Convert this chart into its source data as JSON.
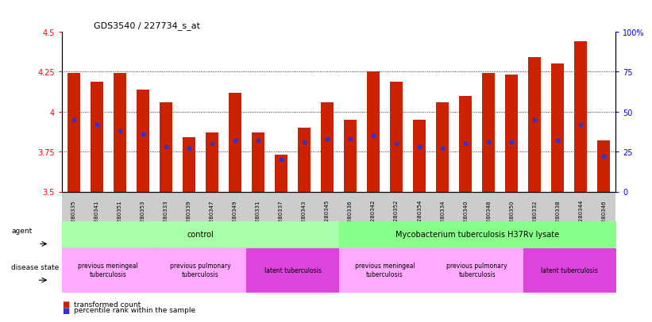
{
  "title": "GDS3540 / 227734_s_at",
  "samples": [
    "GSM280335",
    "GSM280341",
    "GSM280351",
    "GSM280353",
    "GSM280333",
    "GSM280339",
    "GSM280347",
    "GSM280349",
    "GSM280331",
    "GSM280337",
    "GSM280343",
    "GSM280345",
    "GSM280336",
    "GSM280342",
    "GSM280352",
    "GSM280354",
    "GSM280334",
    "GSM280340",
    "GSM280348",
    "GSM280350",
    "GSM280332",
    "GSM280338",
    "GSM280344",
    "GSM280346"
  ],
  "transformed_count": [
    4.24,
    4.19,
    4.24,
    4.14,
    4.06,
    3.84,
    3.87,
    4.12,
    3.87,
    3.73,
    3.9,
    4.06,
    3.95,
    4.25,
    4.19,
    3.95,
    4.06,
    4.1,
    4.24,
    4.23,
    4.34,
    4.3,
    4.44,
    3.82
  ],
  "percentile_pct": [
    45,
    42,
    38,
    36,
    28,
    27,
    30,
    32,
    32,
    20,
    31,
    33,
    33,
    35,
    30,
    28,
    27,
    30,
    31,
    31,
    45,
    32,
    42,
    22
  ],
  "ylim_left": [
    3.5,
    4.5
  ],
  "ylim_right": [
    0,
    100
  ],
  "yticks_left": [
    3.5,
    3.75,
    4.0,
    4.25,
    4.5
  ],
  "yticks_right": [
    0,
    25,
    50,
    75,
    100
  ],
  "ytick_labels_left": [
    "3.5",
    "3.75",
    "4",
    "4.25",
    "4.5"
  ],
  "ytick_labels_right": [
    "0",
    "25",
    "50",
    "75",
    "100%"
  ],
  "bar_color": "#cc2200",
  "dot_color": "#3333cc",
  "agent_groups": [
    {
      "label": "control",
      "start": 0,
      "end": 11,
      "color": "#aaffaa"
    },
    {
      "label": "Mycobacterium tuberculosis H37Rv lysate",
      "start": 12,
      "end": 23,
      "color": "#88ff88"
    }
  ],
  "disease_groups": [
    {
      "label": "previous meningeal\ntuberculosis",
      "start": 0,
      "end": 3,
      "color": "#ffaaff"
    },
    {
      "label": "previous pulmonary\ntuberculosis",
      "start": 4,
      "end": 7,
      "color": "#ffaaff"
    },
    {
      "label": "latent tuberculosis",
      "start": 8,
      "end": 11,
      "color": "#dd44dd"
    },
    {
      "label": "previous meningeal\ntuberculosis",
      "start": 12,
      "end": 15,
      "color": "#ffaaff"
    },
    {
      "label": "previous pulmonary\ntuberculosis",
      "start": 16,
      "end": 19,
      "color": "#ffaaff"
    },
    {
      "label": "latent tuberculosis",
      "start": 20,
      "end": 23,
      "color": "#dd44dd"
    }
  ],
  "bar_width": 0.55
}
